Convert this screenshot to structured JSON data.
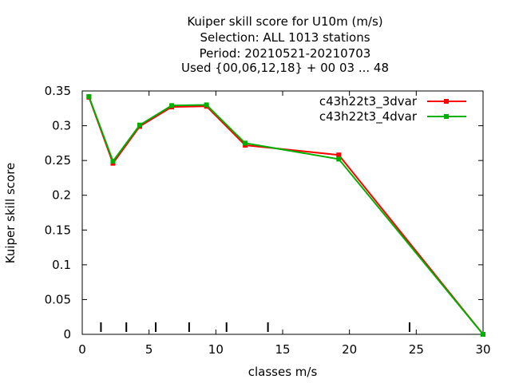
{
  "chart_data": {
    "type": "line",
    "title_lines": [
      "Kuiper skill score  for U10m (m/s)",
      "Selection: ALL   1013 stations",
      "Period: 20210521-20210703",
      "Used {00,06,12,18} + 00 03 ... 48"
    ],
    "xlabel": "classes m/s",
    "ylabel": "Kuiper skill score",
    "xlim": [
      0,
      30
    ],
    "ylim": [
      0,
      0.35
    ],
    "xticks": [
      0,
      5,
      10,
      15,
      20,
      25,
      30
    ],
    "yticks": [
      0,
      0.05,
      0.1,
      0.15,
      0.2,
      0.25,
      0.3,
      0.35
    ],
    "xtick_labels": [
      "0",
      "5",
      "10",
      "15",
      "20",
      "25",
      "30"
    ],
    "ytick_labels": [
      "0",
      "0.05",
      "0.1",
      "0.15",
      "0.2",
      "0.25",
      "0.3",
      "0.35"
    ],
    "class_marks": [
      1.4,
      3.3,
      5.5,
      8.0,
      10.8,
      13.9,
      24.5
    ],
    "legend_position": "top-right",
    "grid": false,
    "series": [
      {
        "name": "c43h22t3_3dvar",
        "color": "#ff0000",
        "x": [
          0.5,
          2.3,
          4.3,
          6.7,
          9.3,
          12.2,
          19.2,
          30
        ],
        "y": [
          0.341,
          0.246,
          0.299,
          0.327,
          0.328,
          0.272,
          0.258,
          0.0
        ]
      },
      {
        "name": "c43h22t3_4dvar",
        "color": "#00b000",
        "x": [
          0.5,
          2.3,
          4.3,
          6.7,
          9.3,
          12.2,
          19.2,
          30
        ],
        "y": [
          0.342,
          0.249,
          0.301,
          0.329,
          0.33,
          0.275,
          0.252,
          0.0
        ]
      }
    ]
  }
}
